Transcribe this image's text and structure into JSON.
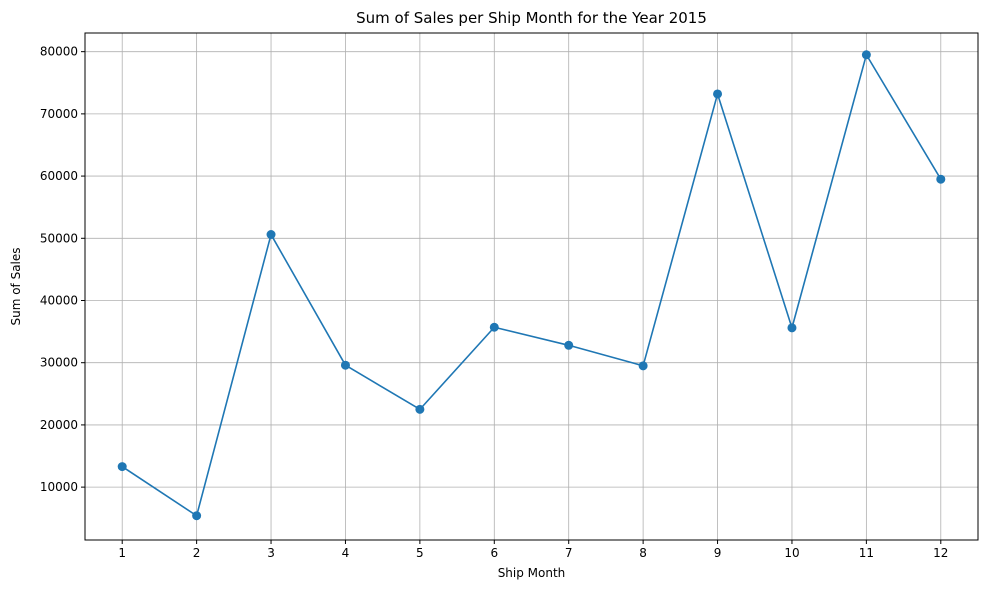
{
  "chart_data": {
    "type": "line",
    "title": "Sum of Sales per Ship Month for the Year 2015",
    "xlabel": "Ship Month",
    "ylabel": "Sum of Sales",
    "x": [
      1,
      2,
      3,
      4,
      5,
      6,
      7,
      8,
      9,
      10,
      11,
      12
    ],
    "series": [
      {
        "values": [
          13300,
          5400,
          50600,
          29600,
          22500,
          35700,
          32800,
          29500,
          73200,
          35600,
          79500,
          59500
        ]
      }
    ],
    "xlim": [
      0.5,
      12.5
    ],
    "ylim": [
      1500,
      83000
    ],
    "y_ticks": [
      10000,
      20000,
      30000,
      40000,
      50000,
      60000,
      70000,
      80000
    ],
    "grid": true,
    "marker": "circle",
    "colors": {
      "line": "#1f77b4",
      "grid": "#b0b0b0",
      "axis": "#000000",
      "background": "#ffffff"
    }
  }
}
